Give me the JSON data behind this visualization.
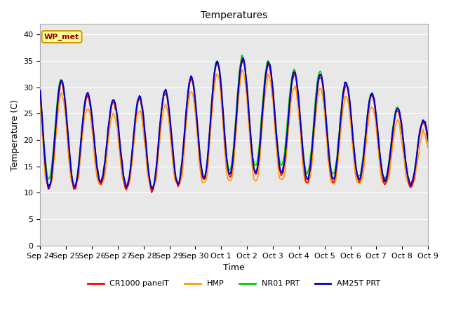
{
  "title": "Temperatures",
  "xlabel": "Time",
  "ylabel": "Temperature (C)",
  "ylim": [
    0,
    42
  ],
  "yticks": [
    0,
    5,
    10,
    15,
    20,
    25,
    30,
    35,
    40
  ],
  "bg_color": "#e8e8e8",
  "annotation_text": "WP_met",
  "annotation_bg": "#ffff99",
  "annotation_border": "#cc9900",
  "annotation_text_color": "#990000",
  "series_colors": {
    "CR1000 panelT": "#ff0000",
    "HMP": "#ff9900",
    "NR01 PRT": "#00cc00",
    "AM25T PRT": "#0000cc"
  },
  "series_lw": {
    "CR1000 panelT": 1.2,
    "HMP": 1.2,
    "NR01 PRT": 1.2,
    "AM25T PRT": 1.5
  },
  "x_tick_labels": [
    "Sep 24",
    "Sep 25",
    "Sep 26",
    "Sep 27",
    "Sep 28",
    "Sep 29",
    "Sep 30",
    "Oct 1",
    "Oct 2",
    "Oct 3",
    "Oct 4",
    "Oct 5",
    "Oct 6",
    "Oct 7",
    "Oct 8",
    "Oct 9"
  ],
  "num_points": 384
}
